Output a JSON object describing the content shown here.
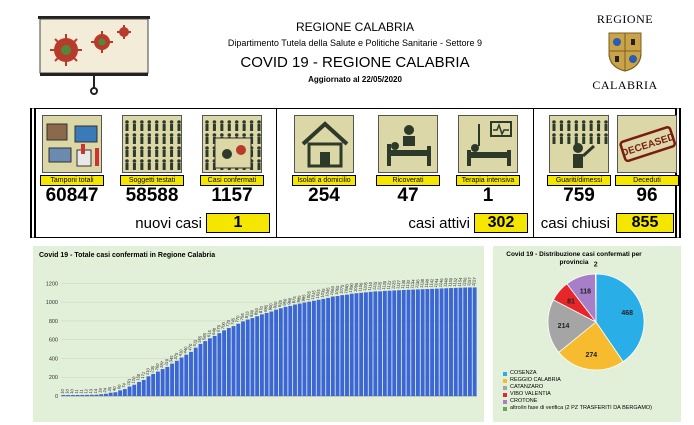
{
  "header": {
    "region": "REGIONE CALABRIA",
    "department": "Dipartimento Tutela della Salute e Politiche Sanitarie - Settore 9",
    "title": "COVID 19 - REGIONE CALABRIA",
    "updated_label": "Aggiornato al",
    "updated_date": "22/05/2020",
    "logo_top": "REGIONE",
    "logo_bottom": "CALABRIA"
  },
  "stats": {
    "tamponi": {
      "label": "Tamponi totali",
      "value": "60847"
    },
    "testati": {
      "label": "Soggetti testati",
      "value": "58588"
    },
    "confermati": {
      "label": "Casi confermati",
      "value": "1157"
    },
    "isolati": {
      "label": "Isolati a domicilio",
      "value": "254"
    },
    "ricoverati": {
      "label": "Ricoverati",
      "value": "47"
    },
    "terapia": {
      "label": "Terapia intensiva",
      "value": "1"
    },
    "guariti": {
      "label": "Guariti/dimessi",
      "value": "759"
    },
    "deceduti": {
      "label": "Deceduti",
      "value": "96"
    },
    "deceased_stamp": "DECEASED"
  },
  "summary": {
    "nuovi_label": "nuovi casi",
    "nuovi_value": "1",
    "attivi_label": "casi attivi",
    "attivi_value": "302",
    "chiusi_label": "casi chiusi",
    "chiusi_value": "855"
  },
  "colors": {
    "bar": "#3b66d6",
    "yellow": "#f5e600",
    "card_bg": "#e3f0d9",
    "tile_bg": "#dcd7a6",
    "pie_cosenza": "#29aee8",
    "pie_reggio": "#f7bb30",
    "pie_catanzaro": "#a5a5a5",
    "pie_vibo": "#e8262a",
    "pie_crotone": "#a77fc8",
    "pie_altro": "#6aa84f"
  },
  "chart_data": [
    {
      "type": "bar",
      "title": "Covid 19 - Totale casi confermati in Regione Calabria",
      "xlabel": "",
      "ylabel": "",
      "ylim": [
        0,
        1300
      ],
      "yticks": [
        0,
        200,
        400,
        600,
        800,
        1000,
        1200
      ],
      "grid": true,
      "values": [
        10,
        10,
        10,
        11,
        11,
        12,
        13,
        14,
        19,
        24,
        35,
        40,
        60,
        74,
        101,
        120,
        150,
        171,
        210,
        235,
        260,
        287,
        310,
        345,
        375,
        410,
        440,
        470,
        515,
        555,
        585,
        615,
        640,
        670,
        700,
        725,
        745,
        770,
        795,
        815,
        830,
        850,
        870,
        885,
        900,
        920,
        935,
        950,
        960,
        975,
        985,
        995,
        1005,
        1015,
        1025,
        1035,
        1045,
        1060,
        1065,
        1075,
        1080,
        1090,
        1095,
        1100,
        1105,
        1110,
        1115,
        1115,
        1120,
        1122,
        1125,
        1127,
        1130,
        1132,
        1134,
        1136,
        1138,
        1140,
        1142,
        1144,
        1146,
        1148,
        1150,
        1152,
        1154,
        1156,
        1157,
        1157
      ]
    },
    {
      "type": "pie",
      "title": "Covid 19 - Distribuzione casi confermati per provincia",
      "categories": [
        "COSENZA",
        "REGGIO CALABRIA",
        "CATANZARO",
        "VIBO VALENTIA",
        "CROTONE",
        "altro/in fase di verifica (2 PZ TRASFERITI DA BERGAMO)"
      ],
      "values": [
        468,
        274,
        214,
        81,
        118,
        2
      ],
      "legend": "bottom-left"
    }
  ]
}
